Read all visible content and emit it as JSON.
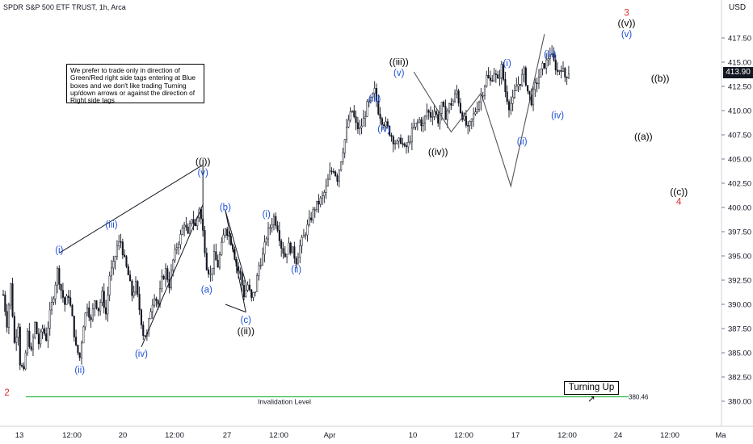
{
  "header": {
    "title": "SPDR S&P 500 ETF TRUST, 1h, Arca",
    "currency": "USD"
  },
  "note_text": "We prefer to trade only in direction of Green/Red right side tags entering at Blue boxes and we don't like trading Turning up/down arrows or against the direction of Right side tags",
  "turning_label": "Turning Up",
  "turning_arrow": "↗",
  "last_price": "413.90",
  "colors": {
    "blue": "#1e4fd6",
    "red": "#e0262b",
    "green": "#2fb84a",
    "black": "#000000"
  },
  "chart_data": {
    "type": "candlestick",
    "y_axis": {
      "ylim": [
        379,
        420
      ],
      "ticks": [
        "380.00",
        "382.50",
        "385.00",
        "387.50",
        "390.00",
        "392.50",
        "395.00",
        "397.50",
        "400.00",
        "402.50",
        "405.00",
        "407.50",
        "410.00",
        "412.50",
        "415.00",
        "417.50"
      ]
    },
    "x_axis": {
      "ticks": [
        "13",
        "12:00",
        "20",
        "12:00",
        "27",
        "12:00",
        "Apr",
        "10",
        "12:00",
        "17",
        "12:00",
        "24",
        "12:00",
        "Ma"
      ]
    },
    "invalidation": {
      "value": 380.46,
      "label": "Invalidation Level",
      "price_label": "380.46"
    },
    "price_path": [
      [
        0,
        391
      ],
      [
        2,
        388
      ],
      [
        4,
        392
      ],
      [
        6,
        386
      ],
      [
        8,
        388
      ],
      [
        9,
        384
      ],
      [
        11,
        382.9
      ],
      [
        13,
        387
      ],
      [
        15,
        385
      ],
      [
        17,
        388
      ],
      [
        19,
        386
      ],
      [
        21,
        387.5
      ],
      [
        23,
        386.5
      ],
      [
        25,
        389
      ],
      [
        27,
        391
      ],
      [
        29,
        393.5
      ],
      [
        31,
        391.5
      ],
      [
        33,
        390
      ],
      [
        35,
        391
      ],
      [
        37,
        388.5
      ],
      [
        39,
        385.5
      ],
      [
        41,
        384.5
      ],
      [
        43,
        388
      ],
      [
        45,
        390
      ],
      [
        47,
        388.2
      ],
      [
        49,
        390.5
      ],
      [
        51,
        389.5
      ],
      [
        53,
        391
      ],
      [
        55,
        389
      ],
      [
        57,
        393
      ],
      [
        59,
        394
      ],
      [
        61,
        396
      ],
      [
        63,
        396.5
      ],
      [
        65,
        394.5
      ],
      [
        67,
        393
      ],
      [
        69,
        391
      ],
      [
        71,
        392
      ],
      [
        73,
        389.5
      ],
      [
        75,
        387
      ],
      [
        77,
        386.8
      ],
      [
        79,
        389.5
      ],
      [
        81,
        391
      ],
      [
        83,
        390
      ],
      [
        85,
        392.5
      ],
      [
        87,
        393.5
      ],
      [
        89,
        392
      ],
      [
        91,
        394.5
      ],
      [
        93,
        396
      ],
      [
        95,
        397
      ],
      [
        97,
        398.5
      ],
      [
        99,
        397
      ],
      [
        101,
        399
      ],
      [
        103,
        398
      ],
      [
        105,
        400
      ],
      [
        107,
        397.5
      ],
      [
        109,
        394
      ],
      [
        111,
        393
      ],
      [
        113,
        395
      ],
      [
        115,
        394
      ],
      [
        117,
        396
      ],
      [
        119,
        398
      ],
      [
        121,
        397
      ],
      [
        123,
        396
      ],
      [
        125,
        394
      ],
      [
        127,
        393
      ],
      [
        129,
        391
      ],
      [
        131,
        392
      ],
      [
        133,
        390.5
      ],
      [
        135,
        391.5
      ],
      [
        137,
        394
      ],
      [
        139,
        395
      ],
      [
        141,
        397
      ],
      [
        143,
        398
      ],
      [
        145,
        399
      ],
      [
        147,
        398
      ],
      [
        149,
        396
      ],
      [
        151,
        395
      ],
      [
        153,
        396
      ],
      [
        155,
        395.5
      ],
      [
        157,
        394.5
      ],
      [
        159,
        396
      ],
      [
        161,
        397
      ],
      [
        163,
        398
      ],
      [
        165,
        399
      ],
      [
        167,
        400
      ],
      [
        169,
        400.5
      ],
      [
        171,
        401
      ],
      [
        173,
        402
      ],
      [
        175,
        403.5
      ],
      [
        177,
        404
      ],
      [
        179,
        403
      ],
      [
        181,
        405
      ],
      [
        183,
        407
      ],
      [
        185,
        409
      ],
      [
        187,
        410
      ],
      [
        189,
        408.5
      ],
      [
        191,
        408
      ],
      [
        193,
        409
      ],
      [
        195,
        410.5
      ],
      [
        197,
        411
      ],
      [
        199,
        412
      ],
      [
        201,
        410
      ],
      [
        203,
        409
      ],
      [
        205,
        408.5
      ],
      [
        207,
        407.8
      ],
      [
        209,
        407
      ],
      [
        211,
        406.5
      ],
      [
        213,
        407
      ],
      [
        215,
        406
      ],
      [
        217,
        406.5
      ],
      [
        219,
        407.8
      ],
      [
        221,
        408.5
      ],
      [
        223,
        409
      ],
      [
        225,
        408.5
      ],
      [
        227,
        410
      ],
      [
        229,
        409.5
      ],
      [
        231,
        410
      ],
      [
        233,
        409
      ],
      [
        235,
        410.5
      ],
      [
        237,
        409.5
      ],
      [
        239,
        410.5
      ],
      [
        241,
        411
      ],
      [
        243,
        412
      ],
      [
        245,
        410
      ],
      [
        247,
        409
      ],
      [
        249,
        408
      ],
      [
        251,
        409
      ],
      [
        253,
        410
      ],
      [
        255,
        411
      ],
      [
        257,
        412
      ],
      [
        259,
        413.5
      ],
      [
        261,
        413
      ],
      [
        263,
        414
      ],
      [
        265,
        413
      ],
      [
        267,
        414.5
      ],
      [
        269,
        412
      ],
      [
        271,
        410.5
      ],
      [
        273,
        411
      ],
      [
        275,
        412.5
      ],
      [
        277,
        413
      ],
      [
        279,
        414
      ],
      [
        281,
        412
      ],
      [
        283,
        411
      ],
      [
        285,
        412.5
      ],
      [
        287,
        413.5
      ],
      [
        289,
        414.5
      ],
      [
        291,
        415
      ],
      [
        293,
        416
      ],
      [
        295,
        415
      ],
      [
        297,
        414
      ],
      [
        299,
        414.5
      ],
      [
        301,
        413.5
      ],
      [
        303,
        414
      ]
    ],
    "wave_path": [
      [
        220,
        414
      ],
      [
        240,
        407.8
      ],
      [
        256,
        411.8
      ],
      [
        272,
        402.2
      ],
      [
        290,
        417.9
      ]
    ],
    "series": [
      {
        "name": "Wave Count",
        "labels": [
          {
            "text": "2",
            "color": "red",
            "x": 2,
            "y": 380.6
          },
          {
            "text": "(i)",
            "color": "blue",
            "x": 30,
            "y": 395.3
          },
          {
            "text": "(ii)",
            "color": "blue",
            "x": 41,
            "y": 382.9
          },
          {
            "text": "(iii)",
            "color": "blue",
            "x": 58,
            "y": 397.9
          },
          {
            "text": "(iv)",
            "color": "blue",
            "x": 74,
            "y": 384.6
          },
          {
            "text": "(v)",
            "color": "blue",
            "x": 107,
            "y": 403.3
          },
          {
            "text": "((i))",
            "color": "black",
            "x": 107,
            "y": 404.4
          },
          {
            "text": "(a)",
            "color": "blue",
            "x": 109,
            "y": 391.2
          },
          {
            "text": "(b)",
            "color": "blue",
            "x": 119,
            "y": 399.7
          },
          {
            "text": "(c)",
            "color": "blue",
            "x": 130,
            "y": 388.1
          },
          {
            "text": "((ii))",
            "color": "black",
            "x": 130,
            "y": 386.9
          },
          {
            "text": "(i)",
            "color": "blue",
            "x": 141,
            "y": 399.0
          },
          {
            "text": "(ii)",
            "color": "blue",
            "x": 157,
            "y": 393.3
          },
          {
            "text": "(iii)",
            "color": "blue",
            "x": 199,
            "y": 410.9
          },
          {
            "text": "(iv)",
            "color": "blue",
            "x": 204,
            "y": 407.8
          },
          {
            "text": "(v)",
            "color": "blue",
            "x": 212,
            "y": 413.6
          },
          {
            "text": "((iii))",
            "color": "black",
            "x": 212,
            "y": 414.7
          },
          {
            "text": "((iv))",
            "color": "black",
            "x": 233,
            "y": 405.4
          },
          {
            "text": "(i)",
            "color": "blue",
            "x": 270,
            "y": 414.6
          },
          {
            "text": "(ii)",
            "color": "blue",
            "x": 278,
            "y": 406.5
          },
          {
            "text": "(iii)",
            "color": "blue",
            "x": 293,
            "y": 415.5
          },
          {
            "text": "(iv)",
            "color": "blue",
            "x": 297,
            "y": 409.2
          },
          {
            "text": "(v)",
            "color": "blue",
            "x": 334,
            "y": 417.6
          },
          {
            "text": "((v))",
            "color": "black",
            "x": 334,
            "y": 418.7
          },
          {
            "text": "3",
            "color": "red",
            "x": 334,
            "y": 419.8
          },
          {
            "text": "((a))",
            "color": "black",
            "x": 343,
            "y": 407.0
          },
          {
            "text": "((b))",
            "color": "black",
            "x": 352,
            "y": 413.0
          },
          {
            "text": "((c))",
            "color": "black",
            "x": 362,
            "y": 401.3
          },
          {
            "text": "4",
            "color": "red",
            "x": 362,
            "y": 400.3
          }
        ]
      }
    ]
  }
}
